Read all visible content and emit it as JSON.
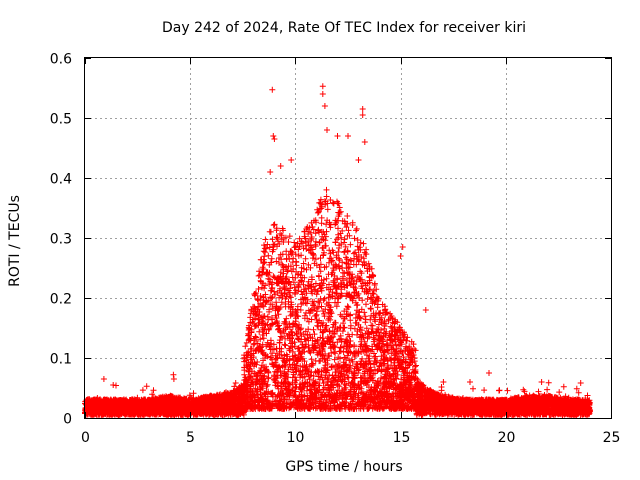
{
  "chart_data": {
    "type": "scatter",
    "title": "Day 242 of 2024, Rate Of TEC Index for receiver kiri",
    "xlabel": "GPS time / hours",
    "ylabel": "ROTI / TECUs",
    "xlim": [
      0,
      25
    ],
    "ylim": [
      0,
      0.6
    ],
    "x_ticks": [
      "0",
      "5",
      "10",
      "15",
      "20",
      "25"
    ],
    "y_ticks": [
      "0",
      "0.1",
      "0.2",
      "0.3",
      "0.4",
      "0.5",
      "0.6"
    ],
    "grid": true,
    "marker": "+",
    "series_color": "#ff0000",
    "profile": {
      "hours": [
        0,
        1,
        2,
        3,
        4,
        5,
        6,
        7,
        7.5,
        8,
        8.5,
        9,
        9.5,
        10,
        10.5,
        11,
        11.5,
        12,
        12.5,
        13,
        13.5,
        14,
        14.5,
        15,
        15.5,
        16,
        16.5,
        17,
        18,
        19,
        20,
        21,
        22,
        23,
        24
      ],
      "roti_typical": [
        0.02,
        0.02,
        0.02,
        0.02,
        0.025,
        0.02,
        0.025,
        0.03,
        0.04,
        0.08,
        0.12,
        0.14,
        0.13,
        0.12,
        0.13,
        0.15,
        0.16,
        0.15,
        0.14,
        0.13,
        0.11,
        0.08,
        0.07,
        0.06,
        0.05,
        0.04,
        0.03,
        0.025,
        0.02,
        0.02,
        0.02,
        0.025,
        0.025,
        0.02,
        0.02
      ]
    },
    "peaks": [
      {
        "x": 8.9,
        "y": 0.547
      },
      {
        "x": 9.3,
        "y": 0.42
      },
      {
        "x": 11.3,
        "y": 0.553
      },
      {
        "x": 11.3,
        "y": 0.54
      },
      {
        "x": 11.4,
        "y": 0.52
      },
      {
        "x": 11.5,
        "y": 0.48
      },
      {
        "x": 12.0,
        "y": 0.47
      },
      {
        "x": 12.5,
        "y": 0.47
      },
      {
        "x": 13.2,
        "y": 0.515
      },
      {
        "x": 13.2,
        "y": 0.505
      },
      {
        "x": 13.3,
        "y": 0.46
      },
      {
        "x": 13.0,
        "y": 0.43
      },
      {
        "x": 8.95,
        "y": 0.47
      },
      {
        "x": 9.0,
        "y": 0.465
      },
      {
        "x": 8.8,
        "y": 0.41
      },
      {
        "x": 9.8,
        "y": 0.43
      },
      {
        "x": 15.1,
        "y": 0.285
      },
      {
        "x": 15.0,
        "y": 0.27
      },
      {
        "x": 16.2,
        "y": 0.18
      },
      {
        "x": 4.2,
        "y": 0.072
      },
      {
        "x": 0.9,
        "y": 0.065
      },
      {
        "x": 18.3,
        "y": 0.06
      },
      {
        "x": 19.2,
        "y": 0.075
      },
      {
        "x": 21.7,
        "y": 0.06
      }
    ]
  }
}
